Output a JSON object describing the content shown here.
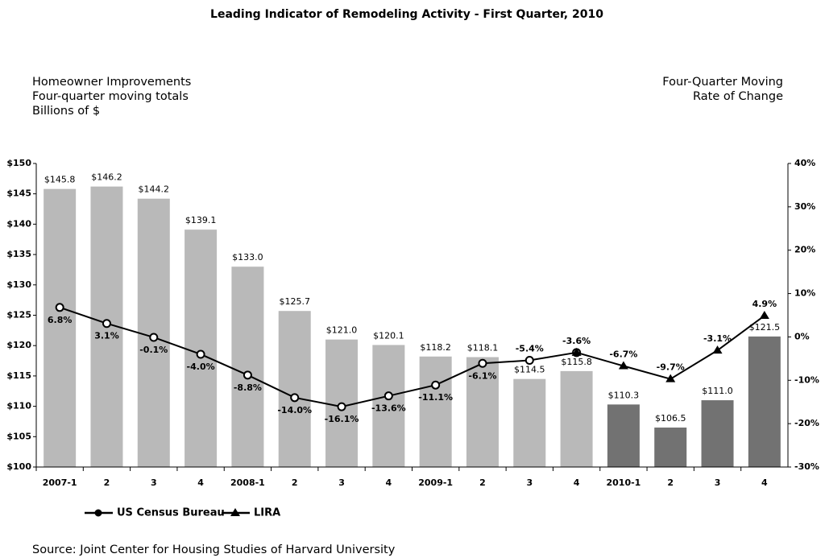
{
  "chart_data": {
    "type": "bar",
    "title": "Leading Indicator of Remodeling Activity - First Quarter, 2010",
    "y_label": [
      "Homeowner Improvements",
      "Four-quarter moving totals",
      "Billions of $"
    ],
    "y2_label": [
      "Four-Quarter Moving",
      "Rate of Change"
    ],
    "source": "Source: Joint Center for Housing Studies of Harvard University",
    "categories": [
      "2007-1",
      "2",
      "3",
      "4",
      "2008-1",
      "2",
      "3",
      "4",
      "2009-1",
      "2",
      "3",
      "4",
      "2010-1",
      "2",
      "3",
      "4"
    ],
    "values": [
      145.8,
      146.2,
      144.2,
      139.1,
      133.0,
      125.7,
      121.0,
      120.1,
      118.2,
      118.1,
      114.5,
      115.8,
      110.3,
      106.5,
      111.0,
      121.5
    ],
    "value_labels": [
      "$145.8",
      "$146.2",
      "$144.2",
      "$139.1",
      "$133.0",
      "$125.7",
      "$121.0",
      "$120.1",
      "$118.2",
      "$118.1",
      "$114.5",
      "$115.8",
      "$110.3",
      "$106.5",
      "$111.0",
      "$121.5"
    ],
    "colors": [
      "#b9b9b9",
      "#b9b9b9",
      "#b9b9b9",
      "#b9b9b9",
      "#b9b9b9",
      "#b9b9b9",
      "#b9b9b9",
      "#b9b9b9",
      "#b9b9b9",
      "#b9b9b9",
      "#b9b9b9",
      "#b9b9b9",
      "#727272",
      "#727272",
      "#727272",
      "#727272"
    ],
    "series": [
      {
        "name": "US Census Bureau",
        "type": "line",
        "marker": "circle",
        "color": "#000000",
        "axis": "y2",
        "values": [
          6.8,
          3.1,
          -0.1,
          -4.0,
          -8.8,
          -14.0,
          -16.1,
          -13.6,
          -11.1,
          -6.1,
          -5.4,
          -3.6,
          null,
          null,
          null,
          null
        ],
        "value_labels": [
          "6.8%",
          "3.1%",
          "-0.1%",
          "-4.0%",
          "-8.8%",
          "-14.0%",
          "-16.1%",
          "-13.6%",
          "-11.1%",
          "-6.1%",
          "-5.4%",
          "-3.6%",
          null,
          null,
          null,
          null
        ]
      },
      {
        "name": "LIRA",
        "type": "line",
        "marker": "triangle",
        "color": "#000000",
        "axis": "y2",
        "values": [
          null,
          null,
          null,
          null,
          null,
          null,
          null,
          null,
          null,
          null,
          null,
          -3.6,
          -6.7,
          -9.7,
          -3.1,
          4.9
        ],
        "value_labels": [
          null,
          null,
          null,
          null,
          null,
          null,
          null,
          null,
          null,
          null,
          null,
          null,
          "-6.7%",
          "-9.7%",
          "-3.1%",
          "4.9%"
        ]
      }
    ],
    "ylim": [
      100,
      150
    ],
    "yticks": [
      {
        "value": 100,
        "label": "$100"
      },
      {
        "value": 105,
        "label": "$105"
      },
      {
        "value": 110,
        "label": "$110"
      },
      {
        "value": 115,
        "label": "$115"
      },
      {
        "value": 120,
        "label": "$120"
      },
      {
        "value": 125,
        "label": "$125"
      },
      {
        "value": 130,
        "label": "$130"
      },
      {
        "value": 135,
        "label": "$135"
      },
      {
        "value": 140,
        "label": "$140"
      },
      {
        "value": 145,
        "label": "$145"
      },
      {
        "value": 150,
        "label": "$150"
      }
    ],
    "y2lim": [
      -30,
      40
    ],
    "y2ticks": [
      {
        "value": -30,
        "label": "-30%"
      },
      {
        "value": -20,
        "label": "-20%"
      },
      {
        "value": -10,
        "label": "-10%"
      },
      {
        "value": 0,
        "label": "0%"
      },
      {
        "value": 10,
        "label": "10%"
      },
      {
        "value": 20,
        "label": "20%"
      },
      {
        "value": 30,
        "label": "30%"
      },
      {
        "value": 40,
        "label": "40%"
      }
    ],
    "legend": "bottom-left"
  }
}
